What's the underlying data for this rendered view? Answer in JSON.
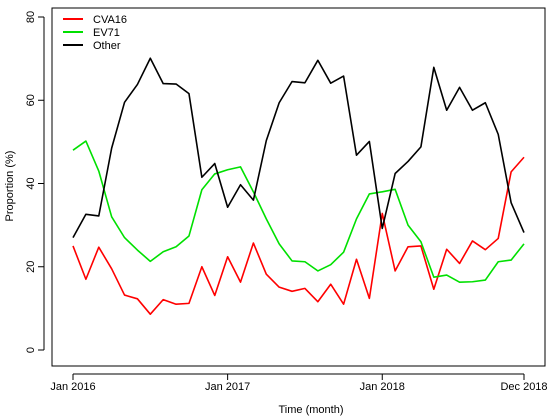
{
  "chart_data": {
    "type": "line",
    "title": "",
    "xlabel": "Time (month)",
    "ylabel": "Proportion (%)",
    "ylim": [
      0,
      80
    ],
    "yticks": [
      0,
      20,
      40,
      60,
      80
    ],
    "xlim": [
      1,
      36
    ],
    "xticks": [
      {
        "x": 1,
        "label": "Jan 2016"
      },
      {
        "x": 13,
        "label": "Jan 2017"
      },
      {
        "x": 25,
        "label": "Jan 2018"
      },
      {
        "x": 36,
        "label": "Dec 2018"
      }
    ],
    "grid": false,
    "legend_position": "top-left",
    "x": [
      1,
      2,
      3,
      4,
      5,
      6,
      7,
      8,
      9,
      10,
      11,
      12,
      13,
      14,
      15,
      16,
      17,
      18,
      19,
      20,
      21,
      22,
      23,
      24,
      25,
      26,
      27,
      28,
      29,
      30,
      31,
      32,
      33,
      34,
      35,
      36
    ],
    "series": [
      {
        "name": "CVA16",
        "color": "#ff0000",
        "values": [
          25.0,
          17.0,
          24.7,
          19.5,
          13.2,
          12.3,
          8.6,
          12.1,
          11.0,
          11.2,
          20.0,
          13.1,
          22.4,
          16.3,
          25.7,
          18.2,
          15.1,
          14.1,
          14.8,
          11.6,
          15.8,
          11.0,
          21.8,
          12.4,
          32.8,
          19.0,
          24.8,
          25.0,
          14.6,
          24.2,
          20.8,
          26.2,
          24.1,
          26.8,
          42.8,
          46.3
        ]
      },
      {
        "name": "EV71",
        "color": "#00e000",
        "values": [
          48.0,
          50.2,
          43.0,
          32.0,
          27.0,
          24.0,
          21.3,
          23.6,
          24.8,
          27.4,
          38.5,
          42.3,
          43.3,
          44.0,
          38.0,
          31.5,
          25.5,
          21.4,
          21.2,
          19.0,
          20.5,
          23.5,
          31.5,
          37.5,
          38.0,
          38.6,
          30.0,
          26.0,
          17.5,
          18.0,
          16.3,
          16.4,
          16.8,
          21.2,
          21.6,
          25.5
        ]
      },
      {
        "name": "Other",
        "color": "#000000",
        "values": [
          27.0,
          32.6,
          32.2,
          48.5,
          59.5,
          63.8,
          70.1,
          64.0,
          63.9,
          61.6,
          41.5,
          44.8,
          34.3,
          39.7,
          36.0,
          50.3,
          59.4,
          64.5,
          64.2,
          69.6,
          64.1,
          65.8,
          46.8,
          50.1,
          29.2,
          42.4,
          45.3,
          48.8,
          67.9,
          57.6,
          63.1,
          57.6,
          59.4,
          51.8,
          35.4,
          28.2
        ]
      }
    ]
  }
}
